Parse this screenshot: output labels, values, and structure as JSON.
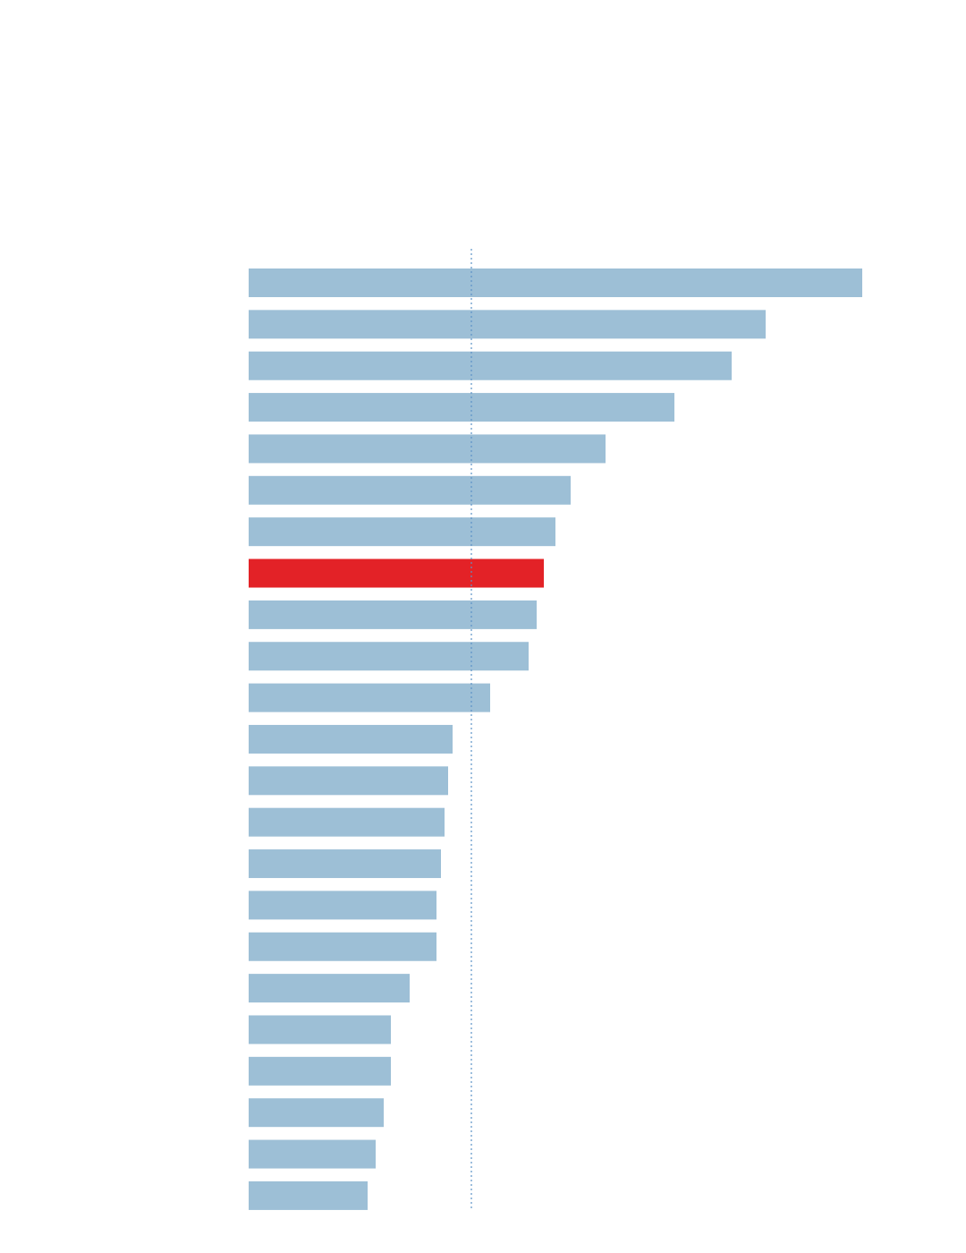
{
  "chart_data": {
    "type": "bar",
    "orientation": "horizontal",
    "values": [
      686,
      578,
      540,
      476,
      399,
      360,
      343,
      330,
      322,
      313,
      270,
      228,
      223,
      219,
      215,
      210,
      210,
      180,
      159,
      159,
      151,
      142,
      133
    ],
    "colors": [
      "#9dbfd6",
      "#9dbfd6",
      "#9dbfd6",
      "#9dbfd6",
      "#9dbfd6",
      "#9dbfd6",
      "#9dbfd6",
      "#e32227",
      "#9dbfd6",
      "#9dbfd6",
      "#9dbfd6",
      "#9dbfd6",
      "#9dbfd6",
      "#9dbfd6",
      "#9dbfd6",
      "#9dbfd6",
      "#9dbfd6",
      "#9dbfd6",
      "#9dbfd6",
      "#9dbfd6",
      "#9dbfd6",
      "#9dbfd6",
      "#9dbfd6"
    ],
    "xlim": [
      0,
      686
    ],
    "reference_line": 249,
    "reference_color": "#5b93c7"
  }
}
